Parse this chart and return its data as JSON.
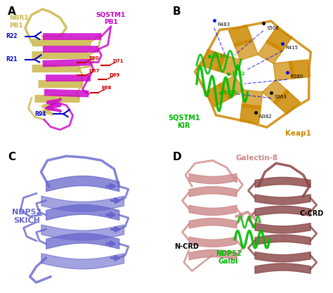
{
  "panel_A": {
    "label": "A",
    "nbr1_label": "NBR1\nPB1",
    "nbr1_color": "#ccb84a",
    "sqstm1_label": "SQSTM1\nPB1",
    "sqstm1_color": "#cc00cc",
    "residue_color_blue": "#0000cc",
    "residue_color_red": "#cc0000",
    "bg_color": "#ffffff"
  },
  "panel_B": {
    "label": "B",
    "keap1_color": "#cc8800",
    "keap1_label": "Keap1",
    "sqstm1_kir_color": "#00bb00",
    "sqstm1_kir_label": "SQSTM1\nKIR",
    "bg_color": "#ffffff"
  },
  "panel_C": {
    "label": "C",
    "ndp52_label": "NDP52\nSKICH",
    "ndp52_color": "#6666cc",
    "bg_color": "#ffffff"
  },
  "panel_D": {
    "label": "D",
    "galectin_label": "Galectin-8",
    "galectin_color": "#cc8888",
    "galectin_dark": "#884444",
    "ndp52_galbi_label": "NDP52\nGalbi",
    "ndp52_galbi_color": "#00bb00",
    "ncrd_label": "N-CRD",
    "ccrd_label": "C-CRD",
    "bg_color": "#ffffff"
  },
  "figure_bg": "#ffffff"
}
